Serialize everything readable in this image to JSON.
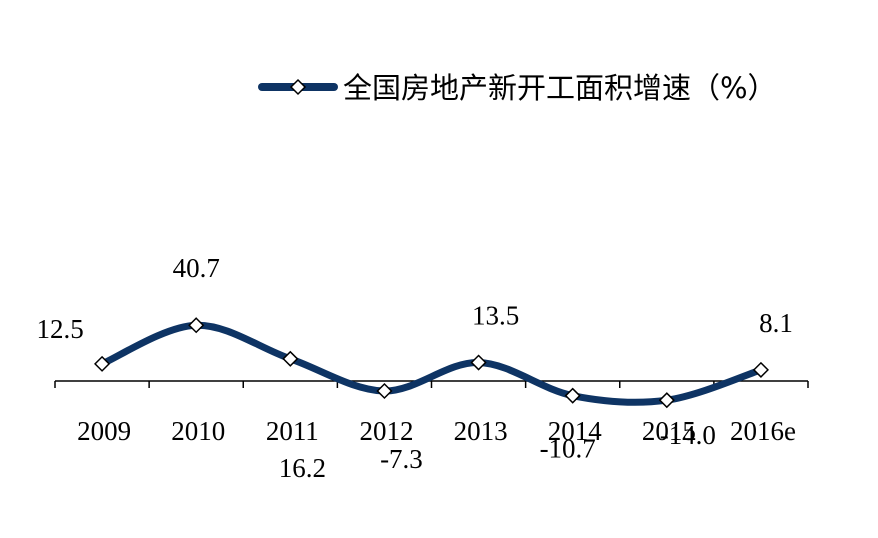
{
  "chart_data": {
    "type": "line",
    "categories": [
      "2009",
      "2010",
      "2011",
      "2012",
      "2013",
      "2014",
      "2015",
      "2016e"
    ],
    "series": [
      {
        "name": "全国房地产新开工面积增速（%）",
        "values": [
          12.5,
          40.7,
          16.2,
          -7.3,
          13.5,
          -10.7,
          -14.0,
          8.1
        ],
        "value_labels": [
          "12.5",
          "40.7",
          "16.2",
          "-7.3",
          "13.5",
          "-10.7",
          "-14.0",
          "8.1"
        ],
        "color": "#0e3464",
        "marker": "diamond"
      }
    ],
    "negative_label_color": "#ff0000",
    "ylim": [
      -20,
      50
    ],
    "grid": false,
    "legend": "top-right",
    "smooth": true
  }
}
